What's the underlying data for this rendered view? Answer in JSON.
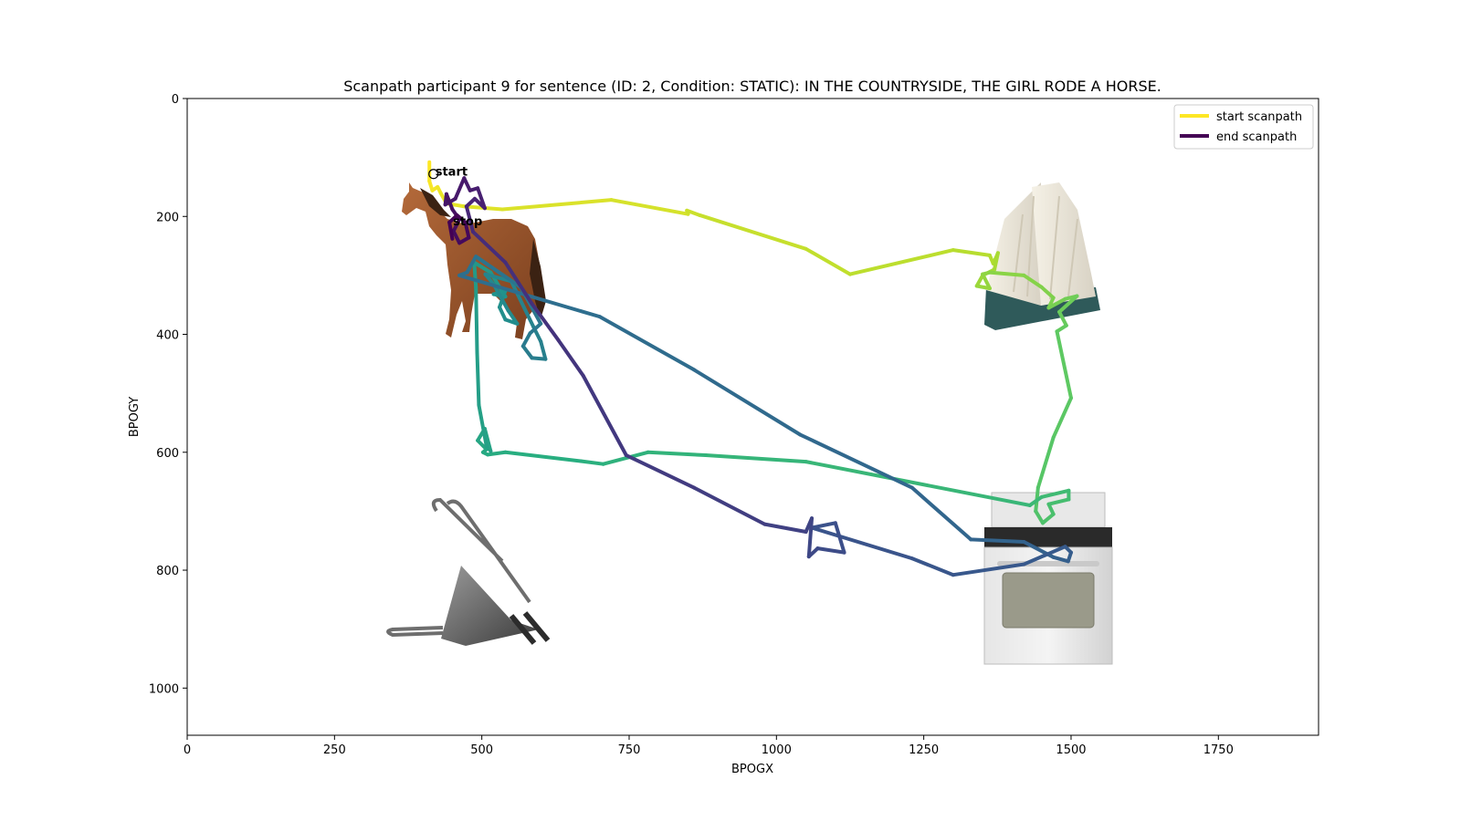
{
  "chart_data": {
    "type": "line",
    "title": "Scanpath participant 9 for sentence (ID: 2, Condition: STATIC):  IN THE COUNTRYSIDE, THE GIRL RODE A HORSE.",
    "xlabel": "BPOGX",
    "ylabel": "BPOGY",
    "xlim": [
      0,
      1920
    ],
    "ylim": [
      1080,
      0
    ],
    "y_inverted": true,
    "xticks": [
      0,
      250,
      500,
      750,
      1000,
      1250,
      1500,
      1750
    ],
    "yticks": [
      0,
      200,
      400,
      600,
      800,
      1000
    ],
    "grid": false,
    "colormap": "viridis (yellow = start, purple = end)",
    "colors": {
      "start": "#fde725",
      "end": "#440154",
      "frame": "#000000"
    },
    "legend": {
      "position": "top-right",
      "entries": [
        {
          "label": "start scanpath",
          "color": "#fde725"
        },
        {
          "label": "end scanpath",
          "color": "#440154"
        }
      ]
    },
    "annotations": [
      {
        "text": "start",
        "x": 418,
        "y": 128
      },
      {
        "text": "stop",
        "x": 448,
        "y": 212
      }
    ],
    "stimulus_images": [
      {
        "name": "horse",
        "x_range": [
          375,
          620
        ],
        "y_range": [
          140,
          410
        ]
      },
      {
        "name": "book",
        "x_range": [
          1330,
          1560
        ],
        "y_range": [
          140,
          395
        ]
      },
      {
        "name": "binder-clip",
        "x_range": [
          340,
          625
        ],
        "y_range": [
          675,
          940
        ]
      },
      {
        "name": "stove",
        "x_range": [
          1340,
          1540
        ],
        "y_range": [
          665,
          955
        ]
      }
    ],
    "series": [
      {
        "points": [
          [
            411,
            108
          ],
          [
            411,
            140
          ],
          [
            416,
            156
          ],
          [
            425,
            150
          ],
          [
            430,
            160
          ],
          [
            440,
            178
          ],
          [
            470,
            183
          ],
          [
            535,
            188
          ],
          [
            720,
            172
          ],
          [
            850,
            196
          ],
          [
            848,
            190
          ],
          [
            870,
            198
          ],
          [
            1050,
            255
          ],
          [
            1125,
            298
          ],
          [
            1300,
            257
          ],
          [
            1362,
            266
          ],
          [
            1368,
            280
          ],
          [
            1376,
            262
          ],
          [
            1370,
            290
          ],
          [
            1350,
            300
          ],
          [
            1340,
            318
          ],
          [
            1362,
            322
          ],
          [
            1350,
            298
          ],
          [
            1362,
            295
          ],
          [
            1420,
            300
          ],
          [
            1450,
            320
          ],
          [
            1470,
            338
          ],
          [
            1462,
            355
          ],
          [
            1490,
            340
          ],
          [
            1510,
            335
          ],
          [
            1480,
            362
          ],
          [
            1492,
            385
          ],
          [
            1476,
            395
          ],
          [
            1500,
            508
          ],
          [
            1470,
            575
          ],
          [
            1444,
            660
          ],
          [
            1440,
            700
          ],
          [
            1452,
            720
          ],
          [
            1470,
            705
          ],
          [
            1462,
            688
          ],
          [
            1496,
            680
          ],
          [
            1496,
            665
          ],
          [
            1450,
            676
          ],
          [
            1430,
            690
          ],
          [
            1050,
            616
          ],
          [
            880,
            605
          ],
          [
            782,
            600
          ],
          [
            706,
            620
          ],
          [
            668,
            615
          ],
          [
            540,
            600
          ],
          [
            510,
            604
          ],
          [
            502,
            600
          ],
          [
            508,
            595
          ],
          [
            493,
            580
          ],
          [
            505,
            560
          ],
          [
            515,
            598
          ],
          [
            508,
            590
          ],
          [
            495,
            520
          ],
          [
            492,
            430
          ],
          [
            490,
            320
          ],
          [
            487,
            278
          ],
          [
            515,
            295
          ],
          [
            540,
            336
          ],
          [
            520,
            332
          ],
          [
            540,
            326
          ],
          [
            530,
            354
          ],
          [
            540,
            375
          ],
          [
            560,
            382
          ],
          [
            545,
            360
          ],
          [
            520,
            315
          ],
          [
            506,
            298
          ],
          [
            550,
            310
          ],
          [
            588,
            388
          ],
          [
            600,
            412
          ],
          [
            608,
            442
          ],
          [
            585,
            440
          ],
          [
            570,
            420
          ],
          [
            582,
            398
          ],
          [
            600,
            382
          ],
          [
            566,
            320
          ],
          [
            490,
            268
          ],
          [
            475,
            295
          ],
          [
            462,
            300
          ],
          [
            700,
            370
          ],
          [
            860,
            460
          ],
          [
            1040,
            570
          ],
          [
            1230,
            660
          ],
          [
            1330,
            748
          ],
          [
            1420,
            752
          ],
          [
            1470,
            778
          ],
          [
            1495,
            785
          ],
          [
            1500,
            770
          ],
          [
            1490,
            760
          ],
          [
            1420,
            790
          ],
          [
            1300,
            808
          ],
          [
            1230,
            780
          ],
          [
            1060,
            728
          ],
          [
            1100,
            720
          ],
          [
            1115,
            770
          ],
          [
            1070,
            763
          ],
          [
            1055,
            777
          ],
          [
            1060,
            712
          ],
          [
            1050,
            735
          ],
          [
            980,
            722
          ],
          [
            860,
            660
          ],
          [
            745,
            605
          ],
          [
            672,
            470
          ],
          [
            630,
            410
          ],
          [
            585,
            348
          ],
          [
            540,
            278
          ],
          [
            485,
            226
          ],
          [
            480,
            206
          ],
          [
            474,
            183
          ],
          [
            488,
            170
          ],
          [
            505,
            186
          ],
          [
            493,
            152
          ],
          [
            480,
            156
          ],
          [
            470,
            135
          ],
          [
            455,
            170
          ],
          [
            438,
            180
          ],
          [
            440,
            162
          ],
          [
            450,
            188
          ],
          [
            462,
            205
          ],
          [
            452,
            225
          ],
          [
            462,
            245
          ],
          [
            478,
            236
          ],
          [
            472,
            210
          ],
          [
            458,
            198
          ],
          [
            445,
            210
          ],
          [
            450,
            238
          ]
        ]
      }
    ]
  }
}
